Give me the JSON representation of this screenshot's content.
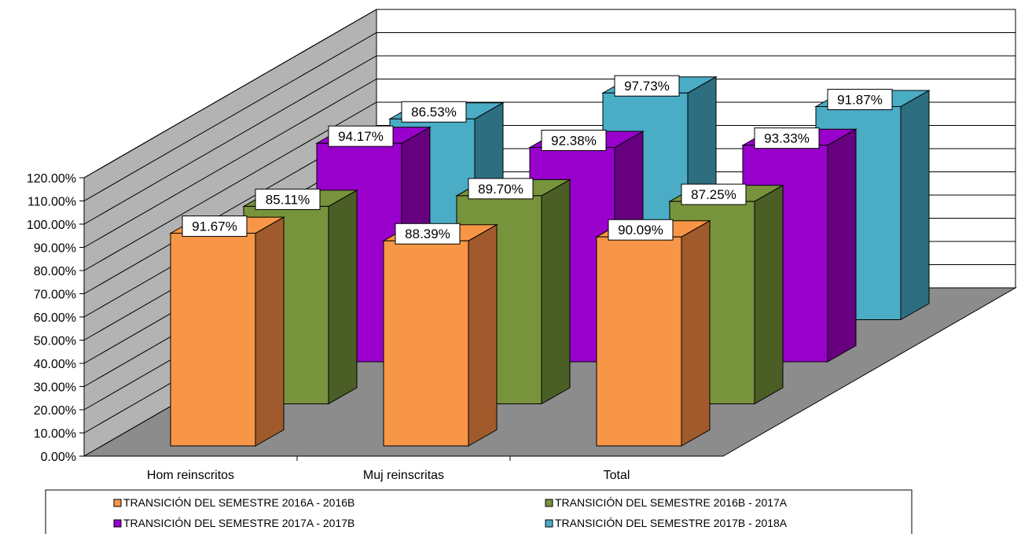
{
  "chart_data": {
    "type": "bar",
    "title": "",
    "xlabel": "",
    "ylabel": "",
    "ylim": [
      0,
      120
    ],
    "yticks": [
      "0.00%",
      "10.00%",
      "20.00%",
      "30.00%",
      "40.00%",
      "50.00%",
      "60.00%",
      "70.00%",
      "80.00%",
      "90.00%",
      "100.00%",
      "110.00%",
      "120.00%"
    ],
    "categories": [
      "Hom reinscritos",
      "Muj reinscritas",
      "Total"
    ],
    "series": [
      {
        "name": "TRANSICIÓN DEL SEMESTRE 2016A - 2016B",
        "values": [
          91.67,
          88.39,
          90.09
        ],
        "labels": [
          "91.67%",
          "88.39%",
          "90.09%"
        ],
        "color": "#f79646",
        "side": "#a05a2c"
      },
      {
        "name": "TRANSICIÓN DEL SEMESTRE 2016B - 2017A",
        "values": [
          85.11,
          89.7,
          87.25
        ],
        "labels": [
          "85.11%",
          "89.70%",
          "87.25%"
        ],
        "color": "#77933c",
        "side": "#4b5e26"
      },
      {
        "name": "TRANSICIÓN DEL SEMESTRE 2017A - 2017B",
        "values": [
          94.17,
          92.38,
          93.33
        ],
        "labels": [
          "94.17%",
          "92.38%",
          "93.33%"
        ],
        "color": "#9900cc",
        "side": "#66007f"
      },
      {
        "name": "TRANSICIÓN DEL SEMESTRE 2017B - 2018A",
        "values": [
          86.53,
          97.73,
          91.87
        ],
        "labels": [
          "86.53%",
          "97.73%",
          "91.87%"
        ],
        "color": "#4bacc6",
        "side": "#2d6f80"
      }
    ],
    "grid": true,
    "legend": "bottom",
    "view": "3d-clustered-column"
  }
}
